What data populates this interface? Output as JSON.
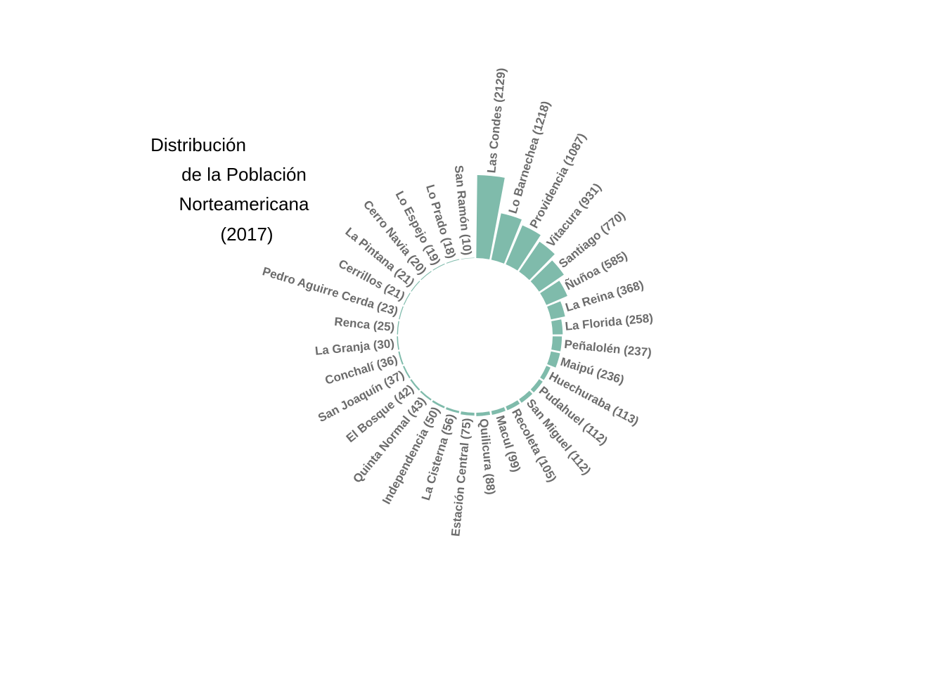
{
  "colors": {
    "bar": "#7fbbab",
    "label": "#6b6b6b",
    "background": "#ffffff",
    "title": "#000000"
  },
  "title_lines": [
    "Distribución",
    "de la Población",
    "Norteamericana",
    "(2017)"
  ],
  "chart_data": {
    "type": "bar",
    "layout": "radial",
    "title": "Distribución de la Población Norteamericana (2017)",
    "categories": [
      "Las Condes",
      "Lo Barnechea",
      "Providencia",
      "Vitacura",
      "Santiago",
      "Ñuñoa",
      "La Reina",
      "La Florida",
      "Peñalolén",
      "Maipú",
      "Huechuraba",
      "Pudahuel",
      "San Miguel",
      "Recoleta",
      "Macul",
      "Quilicura",
      "Estación Central",
      "La Cisterna",
      "Independencia",
      "Quinta Normal",
      "El Bosque",
      "San Joaquín",
      "Conchalí",
      "La Granja",
      "Renca",
      "Pedro Aguirre Cerda",
      "Cerrillos",
      "La Pintana",
      "Cerro Navia",
      "Lo Espejo",
      "Lo Prado",
      "San Ramón"
    ],
    "values": [
      2129,
      1218,
      1087,
      931,
      770,
      585,
      368,
      258,
      237,
      236,
      113,
      112,
      112,
      105,
      99,
      88,
      75,
      56,
      50,
      43,
      42,
      37,
      36,
      30,
      25,
      23,
      21,
      21,
      20,
      19,
      18,
      10
    ],
    "labels": [
      "Las Condes (2129)",
      "Lo Barnechea (1218)",
      "Providencia (1087)",
      "Vitacura (931)",
      "Santiago (770)",
      "Ñuñoa (585)",
      "La Reina (368)",
      "La Florida (258)",
      "Peñalolén (237)",
      "Maipú (236)",
      "Huechuraba (113)",
      "Pudahuel (112)",
      "San Miguel (112)",
      "Recoleta (105)",
      "Macul (99)",
      "Quilicura (88)",
      "Estación Central (75)",
      "La Cisterna (56)",
      "Independencia (50)",
      "Quinta Normal (43)",
      "El Bosque (42)",
      "San Joaquín (37)",
      "Conchalí (36)",
      "La Granja (30)",
      "Renca (25)",
      "Pedro Aguirre Cerda (23)",
      "Cerrillos (21)",
      "La Pintana (21)",
      "Cerro Navia (20)",
      "Lo Espejo (19)",
      "Lo Prado (18)",
      "San Ramón (10)"
    ],
    "xlabel": "",
    "ylabel": "",
    "grid": false,
    "legend": "none"
  }
}
